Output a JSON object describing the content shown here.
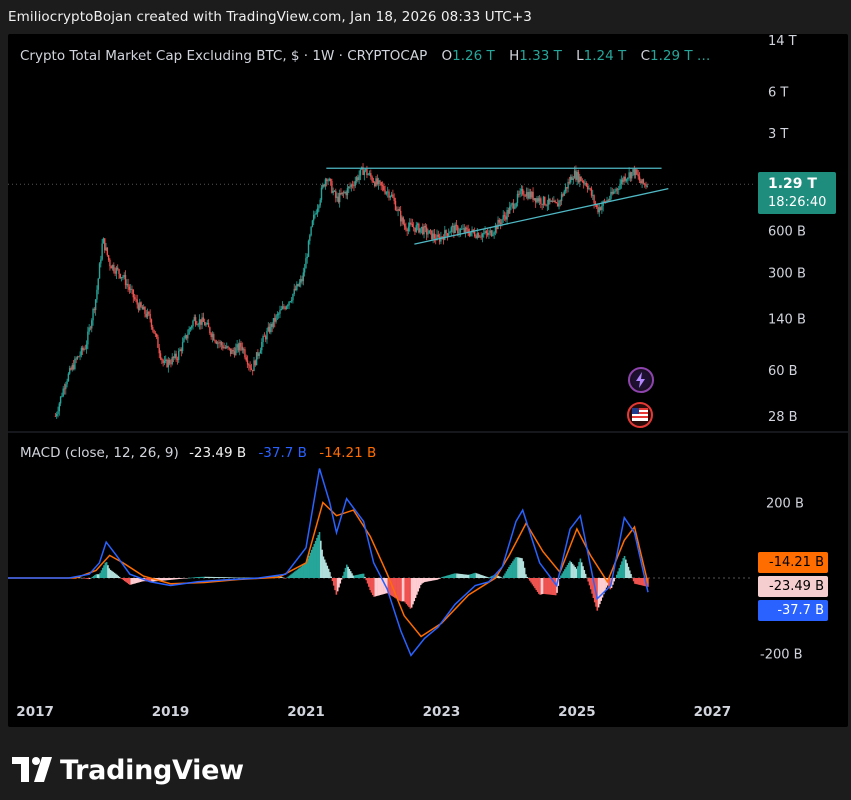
{
  "attribution": "EmiliocryptoBojan created with TradingView.com, Jan 18, 2026 08:33 UTC+3",
  "legend": {
    "symbol": "Crypto Total Market Cap Excluding BTC, $ · 1W · CRYPTOCAP",
    "open_key": "O",
    "open": "1.26 T",
    "high_key": "H",
    "high": "1.33 T",
    "low_key": "L",
    "low": "1.24 T",
    "close_key": "C",
    "close": "1.29 T …"
  },
  "price_tag": {
    "price": "1.29 T",
    "countdown": "18:26:40",
    "color": "#1f8d7e"
  },
  "macd_legend": {
    "label": "MACD (close, 12, 26, 9)",
    "histogram": "-23.49 B",
    "macd": "-37.7 B",
    "signal": "-14.21 B"
  },
  "macd_tags": {
    "signal": "-14.21 B",
    "histogram": "-23.49 B",
    "macd": "-37.7 B"
  },
  "colors": {
    "up": "#26a69a",
    "down": "#ef5350",
    "macd": "#2962ff",
    "signal": "#ff6d00",
    "trendline": "#4fb8c4",
    "background": "#000000"
  },
  "icons": {
    "alert": "lightning-icon",
    "calendar": "us-flag-icon"
  },
  "logo": {
    "text": "TradingView",
    "icon": "tradingview-logo-icon"
  },
  "chart_data": [
    {
      "type": "candlestick",
      "scale": "log",
      "title": "Crypto Total Market Cap Excluding BTC, $ · 1W · CRYPTOCAP",
      "y_ticks": [
        "14 T",
        "6 T",
        "3 T",
        "600 B",
        "300 B",
        "140 B",
        "60 B",
        "28 B"
      ],
      "y_tick_values": [
        14000,
        6000,
        3000,
        600,
        300,
        140,
        60,
        28
      ],
      "x_ticks": [
        "2017",
        "2019",
        "2021",
        "2023",
        "2025",
        "2027"
      ],
      "x_tick_values": [
        2017,
        2019,
        2021,
        2023,
        2025,
        2027
      ],
      "units": "B",
      "series_points": [
        {
          "t": 2017.3,
          "v": 28
        },
        {
          "t": 2017.45,
          "v": 50
        },
        {
          "t": 2017.6,
          "v": 70
        },
        {
          "t": 2017.75,
          "v": 90
        },
        {
          "t": 2017.9,
          "v": 200
        },
        {
          "t": 2018.0,
          "v": 520
        },
        {
          "t": 2018.1,
          "v": 350
        },
        {
          "t": 2018.3,
          "v": 280
        },
        {
          "t": 2018.5,
          "v": 180
        },
        {
          "t": 2018.7,
          "v": 140
        },
        {
          "t": 2018.9,
          "v": 65
        },
        {
          "t": 2019.1,
          "v": 75
        },
        {
          "t": 2019.35,
          "v": 140
        },
        {
          "t": 2019.5,
          "v": 130
        },
        {
          "t": 2019.7,
          "v": 95
        },
        {
          "t": 2019.9,
          "v": 80
        },
        {
          "t": 2020.05,
          "v": 90
        },
        {
          "t": 2020.2,
          "v": 60
        },
        {
          "t": 2020.35,
          "v": 95
        },
        {
          "t": 2020.55,
          "v": 140
        },
        {
          "t": 2020.75,
          "v": 190
        },
        {
          "t": 2020.95,
          "v": 270
        },
        {
          "t": 2021.1,
          "v": 700
        },
        {
          "t": 2021.3,
          "v": 1500
        },
        {
          "t": 2021.45,
          "v": 1000
        },
        {
          "t": 2021.6,
          "v": 1150
        },
        {
          "t": 2021.85,
          "v": 1650
        },
        {
          "t": 2022.05,
          "v": 1300
        },
        {
          "t": 2022.25,
          "v": 1100
        },
        {
          "t": 2022.45,
          "v": 650
        },
        {
          "t": 2022.7,
          "v": 620
        },
        {
          "t": 2022.95,
          "v": 520
        },
        {
          "t": 2023.15,
          "v": 620
        },
        {
          "t": 2023.45,
          "v": 580
        },
        {
          "t": 2023.7,
          "v": 560
        },
        {
          "t": 2023.95,
          "v": 780
        },
        {
          "t": 2024.2,
          "v": 1150
        },
        {
          "t": 2024.45,
          "v": 1000
        },
        {
          "t": 2024.7,
          "v": 900
        },
        {
          "t": 2024.95,
          "v": 1550
        },
        {
          "t": 2025.15,
          "v": 1300
        },
        {
          "t": 2025.3,
          "v": 850
        },
        {
          "t": 2025.5,
          "v": 1050
        },
        {
          "t": 2025.7,
          "v": 1450
        },
        {
          "t": 2025.85,
          "v": 1600
        },
        {
          "t": 2025.95,
          "v": 1300
        },
        {
          "t": 2026.05,
          "v": 1290
        }
      ],
      "trendlines": [
        {
          "kind": "resistance",
          "from": {
            "t": 2021.3,
            "v": 1680
          },
          "to": {
            "t": 2026.25,
            "v": 1680
          }
        },
        {
          "kind": "support",
          "from": {
            "t": 2022.6,
            "v": 480
          },
          "to": {
            "t": 2026.35,
            "v": 1200
          }
        }
      ],
      "last": {
        "open": "1.26 T",
        "high": "1.33 T",
        "low": "1.24 T",
        "close": "1.29 T"
      }
    },
    {
      "type": "macd",
      "title": "MACD (close, 12, 26, 9)",
      "y_ticks": [
        "200 B",
        "-200 B"
      ],
      "y_tick_values": [
        200,
        -200
      ],
      "units": "B",
      "macd": [
        {
          "t": 2016.6,
          "v": 0
        },
        {
          "t": 2017.5,
          "v": 0
        },
        {
          "t": 2017.8,
          "v": 10
        },
        {
          "t": 2017.95,
          "v": 40
        },
        {
          "t": 2018.05,
          "v": 95
        },
        {
          "t": 2018.2,
          "v": 60
        },
        {
          "t": 2018.4,
          "v": 10
        },
        {
          "t": 2018.7,
          "v": -10
        },
        {
          "t": 2019.0,
          "v": -20
        },
        {
          "t": 2019.4,
          "v": -10
        },
        {
          "t": 2019.8,
          "v": -5
        },
        {
          "t": 2020.3,
          "v": 0
        },
        {
          "t": 2020.7,
          "v": 10
        },
        {
          "t": 2021.0,
          "v": 80
        },
        {
          "t": 2021.2,
          "v": 290
        },
        {
          "t": 2021.35,
          "v": 200
        },
        {
          "t": 2021.45,
          "v": 120
        },
        {
          "t": 2021.6,
          "v": 210
        },
        {
          "t": 2021.85,
          "v": 150
        },
        {
          "t": 2022.0,
          "v": 40
        },
        {
          "t": 2022.2,
          "v": -30
        },
        {
          "t": 2022.4,
          "v": -140
        },
        {
          "t": 2022.55,
          "v": -205
        },
        {
          "t": 2022.75,
          "v": -160
        },
        {
          "t": 2022.95,
          "v": -130
        },
        {
          "t": 2023.2,
          "v": -70
        },
        {
          "t": 2023.5,
          "v": -20
        },
        {
          "t": 2023.7,
          "v": -10
        },
        {
          "t": 2023.9,
          "v": 30
        },
        {
          "t": 2024.1,
          "v": 150
        },
        {
          "t": 2024.2,
          "v": 180
        },
        {
          "t": 2024.45,
          "v": 40
        },
        {
          "t": 2024.7,
          "v": -20
        },
        {
          "t": 2024.9,
          "v": 130
        },
        {
          "t": 2025.05,
          "v": 165
        },
        {
          "t": 2025.3,
          "v": -55
        },
        {
          "t": 2025.5,
          "v": -20
        },
        {
          "t": 2025.7,
          "v": 160
        },
        {
          "t": 2025.85,
          "v": 120
        },
        {
          "t": 2026.05,
          "v": -37.7
        }
      ],
      "signal": [
        {
          "t": 2016.6,
          "v": 0
        },
        {
          "t": 2017.6,
          "v": 0
        },
        {
          "t": 2017.9,
          "v": 20
        },
        {
          "t": 2018.1,
          "v": 60
        },
        {
          "t": 2018.3,
          "v": 40
        },
        {
          "t": 2018.6,
          "v": 5
        },
        {
          "t": 2019.0,
          "v": -15
        },
        {
          "t": 2019.5,
          "v": -12
        },
        {
          "t": 2020.0,
          "v": -4
        },
        {
          "t": 2020.6,
          "v": 2
        },
        {
          "t": 2021.0,
          "v": 40
        },
        {
          "t": 2021.25,
          "v": 200
        },
        {
          "t": 2021.45,
          "v": 165
        },
        {
          "t": 2021.7,
          "v": 180
        },
        {
          "t": 2021.95,
          "v": 110
        },
        {
          "t": 2022.2,
          "v": 10
        },
        {
          "t": 2022.45,
          "v": -100
        },
        {
          "t": 2022.7,
          "v": -155
        },
        {
          "t": 2023.0,
          "v": -120
        },
        {
          "t": 2023.4,
          "v": -45
        },
        {
          "t": 2023.8,
          "v": 0
        },
        {
          "t": 2024.0,
          "v": 60
        },
        {
          "t": 2024.25,
          "v": 145
        },
        {
          "t": 2024.5,
          "v": 70
        },
        {
          "t": 2024.75,
          "v": 15
        },
        {
          "t": 2025.0,
          "v": 130
        },
        {
          "t": 2025.2,
          "v": 60
        },
        {
          "t": 2025.45,
          "v": -10
        },
        {
          "t": 2025.7,
          "v": 100
        },
        {
          "t": 2025.85,
          "v": 135
        },
        {
          "t": 2026.05,
          "v": -14.21
        }
      ]
    }
  ]
}
